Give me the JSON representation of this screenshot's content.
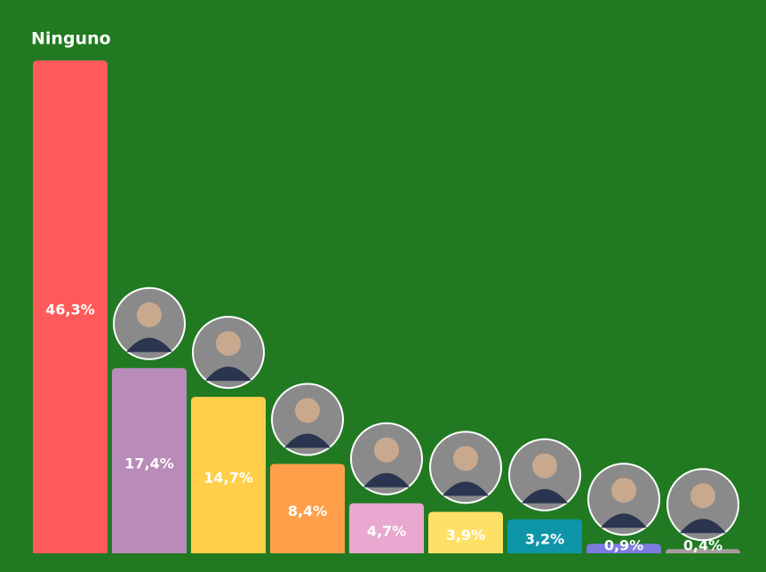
{
  "chart_data": {
    "type": "bar",
    "categories": [
      "Ninguno",
      null,
      null,
      null,
      null,
      null,
      null,
      null,
      null
    ],
    "values": [
      46.3,
      17.4,
      14.7,
      8.4,
      4.7,
      3.9,
      3.2,
      0.9,
      0.4
    ],
    "value_labels": [
      "46,3%",
      "17,4%",
      "14,7%",
      "8,4%",
      "4,7%",
      "3,9%",
      "3,2%",
      "0,9%",
      "0,4%"
    ],
    "colors": [
      "#ff5a5a",
      "#b98bb8",
      "#ffcf4a",
      "#ff9f4a",
      "#e8a8cf",
      "#ffe066",
      "#0e96a8",
      "#7b7be0",
      "#a89ca0"
    ]
  }
}
